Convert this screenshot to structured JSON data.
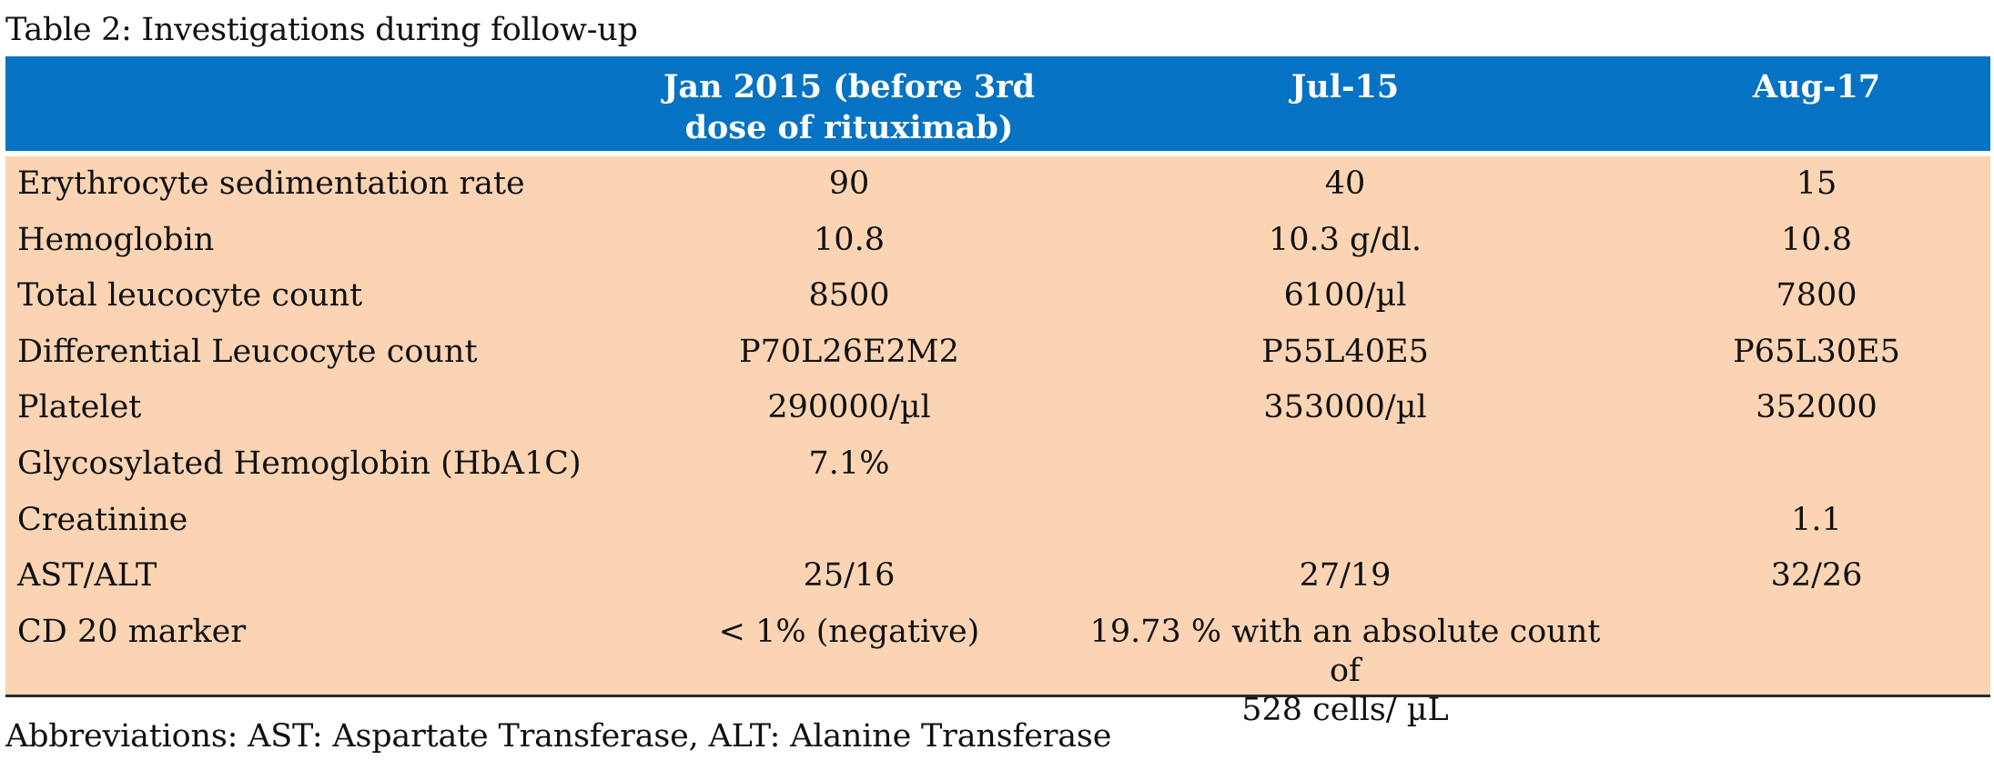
{
  "caption": "Table 2: Investigations during follow-up",
  "header": {
    "col0": "",
    "col1_line1": "Jan 2015 (before 3rd",
    "col1_line2": "dose of rituximab)",
    "col2": "Jul-15",
    "col3": "Aug-17"
  },
  "rows": [
    {
      "label": "Erythrocyte sedimentation rate",
      "jan2015": "90",
      "jul15": "40",
      "aug17": "15"
    },
    {
      "label": "Hemoglobin",
      "jan2015": "10.8",
      "jul15": "10.3 g/dl.",
      "aug17": "10.8"
    },
    {
      "label": "Total leucocyte count",
      "jan2015": "8500",
      "jul15": "6100/µl",
      "aug17": "7800"
    },
    {
      "label": "Differential Leucocyte count",
      "jan2015": "P70L26E2M2",
      "jul15": "P55L40E5",
      "aug17": "P65L30E5"
    },
    {
      "label": "Platelet",
      "jan2015": "290000/µl",
      "jul15": "353000/µl",
      "aug17": "352000"
    },
    {
      "label": "Glycosylated Hemoglobin (HbA1C)",
      "jan2015": "7.1%",
      "jul15": "",
      "aug17": ""
    },
    {
      "label": "Creatinine",
      "jan2015": "",
      "jul15": "",
      "aug17": "1.1"
    },
    {
      "label": "AST/ALT",
      "jan2015": "25/16",
      "jul15": "27/19",
      "aug17": "32/26"
    },
    {
      "label": "CD 20 marker",
      "jan2015": "< 1% (negative)",
      "jul15_line1": "19.73 % with an absolute count of",
      "jul15_line2": "528 cells/ µL",
      "aug17": ""
    }
  ],
  "footnote": "Abbreviations: AST: Aspartate Transferase, ALT: Alanine Transferase",
  "colors": {
    "header_bg": "#0672c3",
    "body_bg": "#fbd4b4",
    "header_text": "#ffffff"
  }
}
